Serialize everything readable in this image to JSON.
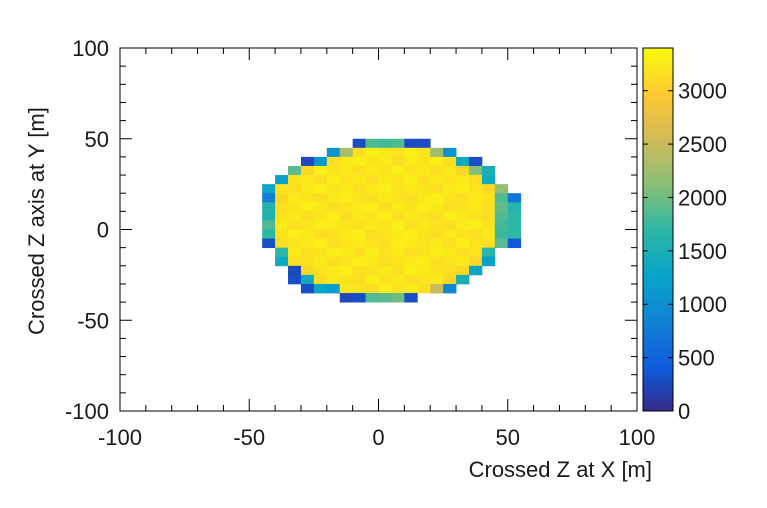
{
  "chart_data": {
    "type": "heatmap",
    "title": "",
    "xlabel": "Crossed Z at X [m]",
    "ylabel": "Crossed Z axis at Y [m]",
    "xlim": [
      -100,
      100
    ],
    "ylim": [
      -100,
      100
    ],
    "x_ticks": [
      -100,
      -50,
      0,
      50,
      100
    ],
    "y_ticks": [
      -100,
      -50,
      0,
      50,
      100
    ],
    "x_tick_labels": [
      "-100",
      "-50",
      "0",
      "50",
      "100"
    ],
    "y_tick_labels": [
      "-100",
      "-50",
      "0",
      "50",
      "100"
    ],
    "bin_width": 5,
    "bin_x_range": [
      -55,
      55
    ],
    "bin_y_range": [
      -50,
      50
    ],
    "bins_x": 22,
    "bins_y": 20,
    "grid": false,
    "colorbar": {
      "min": 0,
      "max": 3400,
      "ticks": [
        0,
        500,
        1000,
        1500,
        2000,
        2500,
        3000
      ],
      "tick_labels": [
        "0",
        "500",
        "1000",
        "1500",
        "2000",
        "2500",
        "3000"
      ],
      "placement": "right",
      "colormap": "parula"
    },
    "rows_top_to_bottom": [
      [
        0,
        0,
        0,
        0,
        0,
        0,
        0,
        0,
        0,
        280,
        1850,
        1800,
        1850,
        270,
        280,
        0,
        0,
        0,
        0,
        0,
        0,
        0
      ],
      [
        0,
        0,
        0,
        0,
        0,
        0,
        0,
        1050,
        2300,
        3150,
        3300,
        3250,
        3200,
        3300,
        3200,
        2250,
        1050,
        0,
        0,
        0,
        0,
        0
      ],
      [
        0,
        0,
        0,
        0,
        0,
        250,
        1100,
        3150,
        3250,
        3300,
        3200,
        3250,
        3150,
        3250,
        3200,
        3300,
        3150,
        1400,
        300,
        0,
        0,
        0
      ],
      [
        0,
        0,
        0,
        0,
        1900,
        3100,
        3300,
        3200,
        3250,
        3150,
        3250,
        3200,
        3300,
        3200,
        3250,
        3150,
        3250,
        3100,
        2100,
        1500,
        0,
        0
      ],
      [
        0,
        0,
        0,
        1200,
        3200,
        3250,
        3150,
        3300,
        3200,
        3250,
        3150,
        3250,
        3200,
        3300,
        3150,
        3250,
        3200,
        3250,
        3150,
        1400,
        0,
        0
      ],
      [
        0,
        0,
        1300,
        3200,
        3150,
        3250,
        3300,
        3200,
        3250,
        3150,
        3250,
        3300,
        3200,
        3250,
        3200,
        3150,
        3250,
        3300,
        3200,
        3100,
        2200,
        0
      ],
      [
        0,
        0,
        800,
        3100,
        3250,
        3200,
        3150,
        3250,
        3300,
        3200,
        3150,
        3250,
        3200,
        3150,
        3250,
        3300,
        3200,
        3150,
        3250,
        3200,
        1850,
        700
      ],
      [
        0,
        0,
        1600,
        3150,
        3200,
        3300,
        3250,
        3150,
        3200,
        3250,
        3300,
        3150,
        3250,
        3200,
        3300,
        3250,
        3150,
        3200,
        3250,
        3150,
        1950,
        1600
      ],
      [
        0,
        0,
        1550,
        3200,
        3250,
        3150,
        3200,
        3300,
        3150,
        3250,
        3200,
        3300,
        3150,
        3250,
        3200,
        3150,
        3300,
        3250,
        3200,
        3150,
        1850,
        1700
      ],
      [
        0,
        0,
        1850,
        3250,
        3150,
        3200,
        3300,
        3250,
        3200,
        3150,
        3250,
        3200,
        3300,
        3150,
        3250,
        3200,
        3150,
        3250,
        3300,
        3200,
        1800,
        1700
      ],
      [
        0,
        0,
        1700,
        3200,
        3300,
        3250,
        3150,
        3200,
        3250,
        3300,
        3150,
        3200,
        3250,
        3300,
        3200,
        3150,
        3250,
        3200,
        3150,
        3250,
        1750,
        1700
      ],
      [
        0,
        0,
        300,
        3150,
        3200,
        3250,
        3300,
        3150,
        3200,
        3250,
        3200,
        3150,
        3300,
        3250,
        3200,
        3250,
        3150,
        3300,
        3200,
        3150,
        1900,
        400
      ],
      [
        0,
        0,
        0,
        1700,
        3250,
        3150,
        3200,
        3300,
        3250,
        3150,
        3300,
        3200,
        3250,
        3150,
        3200,
        3300,
        3250,
        3150,
        3200,
        1650,
        0,
        0
      ],
      [
        0,
        0,
        0,
        1350,
        3150,
        3200,
        3250,
        3150,
        3200,
        3300,
        3250,
        3150,
        3200,
        3250,
        3300,
        3150,
        3200,
        3250,
        3100,
        1200,
        0,
        0
      ],
      [
        0,
        0,
        0,
        0,
        250,
        3100,
        3200,
        3250,
        3300,
        3150,
        3200,
        3250,
        3150,
        3300,
        3250,
        3200,
        3150,
        3100,
        1300,
        0,
        0,
        0
      ],
      [
        0,
        0,
        0,
        0,
        300,
        1400,
        3150,
        3250,
        3200,
        3150,
        3300,
        3200,
        3250,
        3150,
        3200,
        3250,
        3100,
        1500,
        0,
        0,
        0,
        0
      ],
      [
        0,
        0,
        0,
        0,
        0,
        300,
        1300,
        1150,
        3250,
        3200,
        3150,
        3300,
        3200,
        3250,
        3150,
        2500,
        900,
        0,
        0,
        0,
        0,
        0
      ],
      [
        0,
        0,
        0,
        0,
        0,
        0,
        0,
        0,
        250,
        300,
        1850,
        1900,
        2000,
        300,
        0,
        0,
        0,
        0,
        0,
        0,
        0,
        0
      ],
      [
        0,
        0,
        0,
        0,
        0,
        0,
        0,
        0,
        0,
        0,
        0,
        0,
        0,
        0,
        0,
        0,
        0,
        0,
        0,
        0,
        0,
        0
      ],
      [
        0,
        0,
        0,
        0,
        0,
        0,
        0,
        0,
        0,
        0,
        0,
        0,
        0,
        0,
        0,
        0,
        0,
        0,
        0,
        0,
        0,
        0
      ]
    ]
  }
}
